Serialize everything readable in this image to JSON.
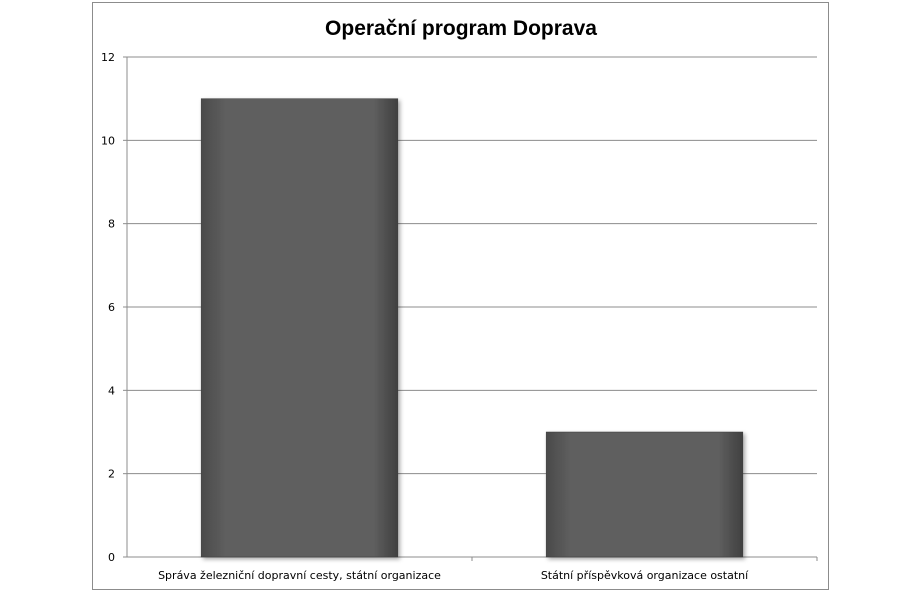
{
  "chart_data": {
    "type": "bar",
    "title": "Operační program Doprava",
    "xlabel": "",
    "ylabel": "",
    "categories": [
      "Správa železniční dopravní cesty, státní organizace",
      "Státní příspěvková organizace ostatní"
    ],
    "values": [
      11,
      3
    ],
    "ylim": [
      0,
      12
    ],
    "yticks": [
      "0",
      "2",
      "4",
      "6",
      "8",
      "10",
      "12"
    ],
    "grid": true,
    "legend": "none",
    "bar_color": "#5a5a5a"
  }
}
